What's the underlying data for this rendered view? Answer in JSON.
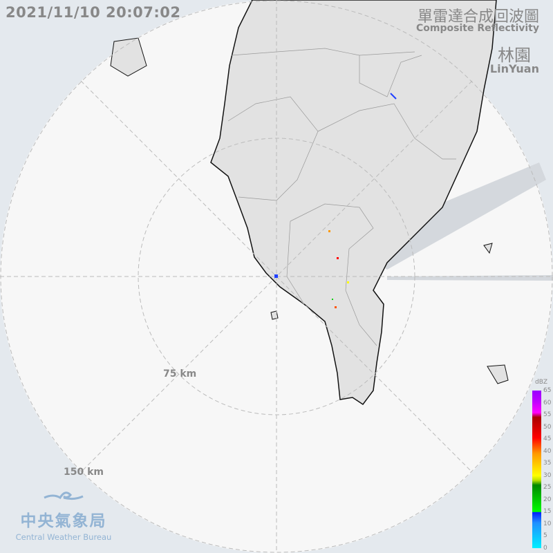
{
  "timestamp": "2021/11/10 20:07:02",
  "title": {
    "zh": "單雷達合成回波圖",
    "en": "Composite Reflectivity"
  },
  "station": {
    "zh": "林園",
    "en": "LinYuan"
  },
  "range_labels": [
    "75 km",
    "150 km"
  ],
  "legend": {
    "unit": "dBZ",
    "ticks": [
      "65",
      "60",
      "55",
      "50",
      "45",
      "40",
      "35",
      "30",
      "25",
      "20",
      "15",
      "10",
      "5",
      "0"
    ]
  },
  "logo": {
    "zh": "中央氣象局",
    "en": "Central Weather Bureau"
  },
  "colors": {
    "background": "#e4e9ee",
    "radar_area": "#f7f7f7",
    "land": "#e2e2e2",
    "logo": "#93b4d4"
  }
}
